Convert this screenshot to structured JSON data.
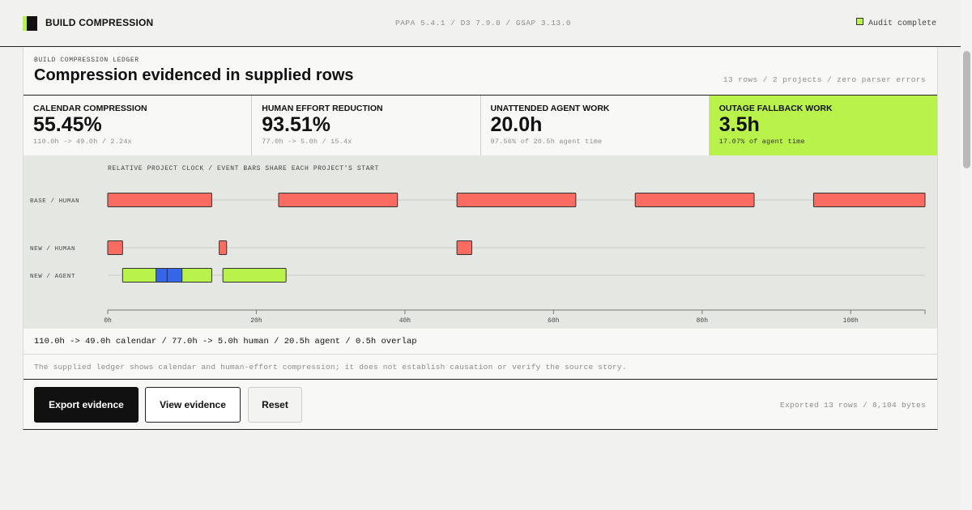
{
  "header": {
    "title": "BUILD COMPRESSION",
    "versions": "PAPA 5.4.1 / D3 7.9.0 / GSAP 3.13.0",
    "status_label": "Audit complete",
    "status_color": "#b8f24a"
  },
  "ledger": {
    "eyebrow": "BUILD COMPRESSION LEDGER",
    "title": "Compression evidenced in supplied rows",
    "summary": "13 rows / 2 projects / zero parser errors"
  },
  "kpis": [
    {
      "label": "CALENDAR COMPRESSION",
      "value": "55.45%",
      "sub": "110.0h -> 49.0h / 2.24x"
    },
    {
      "label": "HUMAN EFFORT REDUCTION",
      "value": "93.51%",
      "sub": "77.0h -> 5.0h / 15.4x"
    },
    {
      "label": "UNATTENDED AGENT WORK",
      "value": "20.0h",
      "sub": "97.56% of 20.5h agent time"
    },
    {
      "label": "OUTAGE FALLBACK WORK",
      "value": "3.5h",
      "sub": "17.07% of agent time"
    }
  ],
  "chart_data": {
    "type": "timeline",
    "caption": "RELATIVE PROJECT CLOCK / EVENT BARS SHARE EACH PROJECT'S START",
    "xlim": [
      0,
      110
    ],
    "ticks": [
      0,
      20,
      40,
      60,
      80,
      100
    ],
    "tick_suffix": "h",
    "lanes": [
      {
        "label": "BASE / HUMAN",
        "bars": [
          {
            "start": 0,
            "end": 14,
            "kind": "human"
          },
          {
            "start": 23,
            "end": 39,
            "kind": "human"
          },
          {
            "start": 47,
            "end": 63,
            "kind": "human"
          },
          {
            "start": 71,
            "end": 87,
            "kind": "human"
          },
          {
            "start": 95,
            "end": 110,
            "kind": "human"
          }
        ]
      },
      {
        "label": "NEW / HUMAN",
        "bars": [
          {
            "start": 0,
            "end": 2,
            "kind": "human"
          },
          {
            "start": 15,
            "end": 16,
            "kind": "human"
          },
          {
            "start": 47,
            "end": 49,
            "kind": "human"
          }
        ]
      },
      {
        "label": "NEW / AGENT",
        "bars": [
          {
            "start": 2,
            "end": 14,
            "kind": "agent"
          },
          {
            "start": 6.5,
            "end": 8,
            "kind": "fallback"
          },
          {
            "start": 8,
            "end": 10,
            "kind": "fallback"
          },
          {
            "start": 15.5,
            "end": 24,
            "kind": "agent"
          }
        ]
      }
    ],
    "colors": {
      "human": "#fa6b61",
      "agent": "#b8f24a",
      "fallback": "#3566e8"
    }
  },
  "totals": "110.0h -> 49.0h calendar / 77.0h -> 5.0h human / 20.5h agent / 0.5h overlap",
  "note": "The supplied ledger shows calendar and human-effort compression; it does not establish causation or verify the source story.",
  "actions": {
    "export_label": "Export evidence",
    "view_label": "View evidence",
    "reset_label": "Reset",
    "export_status": "Exported 13 rows / 8,104 bytes"
  }
}
